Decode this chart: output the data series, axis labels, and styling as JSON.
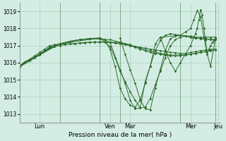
{
  "background_color": "#d4ede4",
  "plot_bg_color": "#d4ede4",
  "line_color": "#2d6b2d",
  "grid_color": "#aacfbf",
  "xlabel": "Pression niveau de la mer( hPa )",
  "ylim": [
    1012.5,
    1019.5
  ],
  "yticks": [
    1013,
    1014,
    1015,
    1016,
    1017,
    1018,
    1019
  ],
  "series": [
    {
      "x": [
        0,
        6,
        12,
        18,
        24,
        30,
        36,
        42,
        48,
        54,
        60,
        66,
        72,
        78,
        84,
        90,
        96,
        102,
        108,
        114,
        120,
        126,
        132,
        138,
        144,
        150,
        156,
        162,
        168,
        174,
        180,
        186,
        192,
        198,
        204,
        210,
        216,
        222,
        228,
        234
      ],
      "y": [
        1015.8,
        1016.05,
        1016.2,
        1016.4,
        1016.6,
        1016.8,
        1017.0,
        1017.05,
        1017.1,
        1017.1,
        1017.1,
        1017.1,
        1017.15,
        1017.15,
        1017.2,
        1017.2,
        1017.2,
        1017.2,
        1017.2,
        1017.2,
        1017.15,
        1017.1,
        1017.0,
        1016.9,
        1016.8,
        1016.7,
        1016.6,
        1016.55,
        1016.5,
        1016.45,
        1016.4,
        1016.4,
        1016.4,
        1016.45,
        1016.5,
        1016.55,
        1016.6,
        1016.65,
        1016.7,
        1016.75
      ]
    },
    {
      "x": [
        0,
        6,
        12,
        18,
        24,
        30,
        36,
        42,
        48,
        54,
        60,
        66,
        72,
        78,
        84,
        90,
        96,
        102,
        108,
        114,
        120,
        126,
        132,
        138,
        144,
        150,
        156,
        162,
        168,
        174,
        180,
        186,
        192,
        198,
        204,
        210,
        216,
        222,
        228,
        234
      ],
      "y": [
        1015.8,
        1016.0,
        1016.15,
        1016.3,
        1016.5,
        1016.7,
        1016.9,
        1016.95,
        1017.0,
        1017.05,
        1017.1,
        1017.12,
        1017.15,
        1017.18,
        1017.2,
        1017.22,
        1017.22,
        1017.2,
        1017.18,
        1017.15,
        1017.1,
        1017.05,
        1017.0,
        1016.95,
        1016.9,
        1016.85,
        1016.8,
        1016.75,
        1016.7,
        1016.65,
        1016.6,
        1016.58,
        1016.55,
        1016.55,
        1016.6,
        1016.65,
        1016.7,
        1016.75,
        1016.78,
        1016.8
      ]
    },
    {
      "x": [
        0,
        12,
        24,
        36,
        48,
        60,
        72,
        84,
        96,
        108,
        120,
        132,
        144,
        156,
        168,
        180,
        192,
        204,
        216,
        228
      ],
      "y": [
        1015.75,
        1016.1,
        1016.45,
        1016.85,
        1017.1,
        1017.25,
        1017.35,
        1017.4,
        1017.4,
        1017.35,
        1017.2,
        1017.05,
        1016.85,
        1016.7,
        1016.55,
        1016.45,
        1016.45,
        1016.5,
        1016.6,
        1016.7
      ]
    },
    {
      "x": [
        0,
        12,
        24,
        36,
        48,
        60,
        72,
        84,
        96,
        102,
        108,
        114,
        120,
        126,
        132,
        138,
        144,
        150,
        156,
        162,
        168,
        174,
        180,
        186,
        192,
        198,
        204,
        210,
        216,
        222,
        228,
        234
      ],
      "y": [
        1015.8,
        1016.15,
        1016.5,
        1016.9,
        1017.1,
        1017.25,
        1017.35,
        1017.4,
        1017.4,
        1017.2,
        1016.95,
        1016.3,
        1015.5,
        1014.9,
        1014.3,
        1013.8,
        1013.35,
        1013.4,
        1013.9,
        1014.7,
        1015.5,
        1016.3,
        1017.0,
        1017.35,
        1017.5,
        1017.55,
        1017.5,
        1017.45,
        1017.4,
        1017.38,
        1017.35,
        1017.35
      ]
    },
    {
      "x": [
        0,
        24,
        48,
        72,
        84,
        96,
        102,
        108,
        114,
        120,
        126,
        132,
        138,
        144,
        150,
        156,
        162,
        168,
        174,
        180,
        186,
        192,
        198,
        204,
        210,
        216,
        222,
        228,
        234
      ],
      "y": [
        1015.8,
        1016.5,
        1017.1,
        1017.35,
        1017.42,
        1017.45,
        1017.3,
        1016.8,
        1015.8,
        1014.5,
        1013.9,
        1013.5,
        1013.4,
        1013.8,
        1014.8,
        1015.8,
        1016.7,
        1017.3,
        1017.6,
        1017.7,
        1017.65,
        1017.6,
        1017.55,
        1017.5,
        1017.45,
        1017.42,
        1017.4,
        1017.38,
        1017.35
      ]
    },
    {
      "x": [
        0,
        48,
        96,
        108,
        120,
        126,
        132,
        138,
        144,
        150,
        156,
        162,
        168,
        192,
        204,
        210,
        216,
        222,
        228,
        234
      ],
      "y": [
        1015.8,
        1017.1,
        1017.45,
        1017.2,
        1015.6,
        1014.8,
        1013.8,
        1013.3,
        1013.35,
        1014.9,
        1015.8,
        1017.1,
        1017.5,
        1017.6,
        1017.55,
        1017.5,
        1017.5,
        1017.5,
        1017.5,
        1017.5
      ]
    },
    {
      "x": [
        120,
        126,
        132,
        138,
        144,
        150,
        156,
        162,
        168,
        174,
        180,
        186,
        192,
        198,
        204,
        208,
        212,
        216,
        220,
        224,
        228,
        234
      ],
      "y": [
        1017.45,
        1016.5,
        1015.6,
        1014.8,
        1013.85,
        1013.3,
        1013.25,
        1014.5,
        1015.6,
        1016.7,
        1017.4,
        1017.55,
        1017.6,
        1017.8,
        1018.0,
        1018.5,
        1019.05,
        1018.7,
        1017.5,
        1016.5,
        1015.8,
        1017.45
      ]
    },
    {
      "x": [
        168,
        174,
        180,
        186,
        192,
        198,
        204,
        208,
        210,
        212,
        214,
        216,
        218,
        220,
        222,
        224,
        226,
        228,
        230,
        232,
        234
      ],
      "y": [
        1017.5,
        1016.7,
        1016.0,
        1015.5,
        1016.0,
        1016.5,
        1017.0,
        1017.5,
        1017.7,
        1018.0,
        1018.5,
        1019.1,
        1018.8,
        1018.0,
        1017.3,
        1016.5,
        1016.8,
        1017.0,
        1017.2,
        1017.3,
        1017.45
      ]
    }
  ],
  "day_lines": [
    48,
    96,
    120,
    192,
    234
  ],
  "day_labels": [
    {
      "x": 24,
      "label": "Lun"
    },
    {
      "x": 108,
      "label": "Ven"
    },
    {
      "x": 132,
      "label": "Mar"
    },
    {
      "x": 204,
      "label": "Mer"
    },
    {
      "x": 237,
      "label": "Jeu"
    }
  ],
  "xlim": [
    0,
    240
  ]
}
